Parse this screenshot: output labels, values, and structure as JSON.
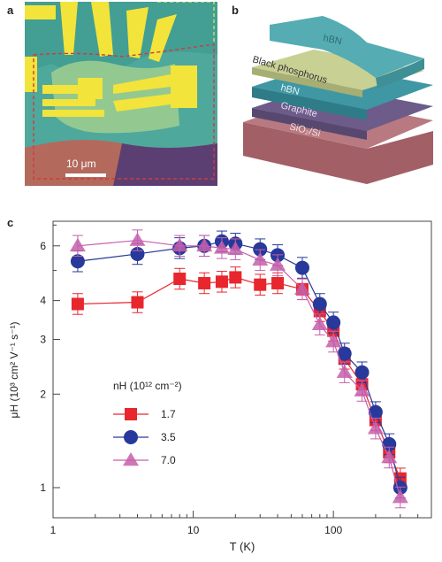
{
  "panel_labels": {
    "a": "a",
    "b": "b",
    "c": "c"
  },
  "micrograph": {
    "scale_bar": "10 μm"
  },
  "stack": {
    "layers": [
      "hBN",
      "Black phosphorus",
      "hBN",
      "Graphite",
      "SiO₂/Si"
    ],
    "colors": [
      "#4fa7ad",
      "#c7cf8e",
      "#3e93a0",
      "#6a5a86",
      "#b27078"
    ]
  },
  "chart_data": {
    "type": "scatter",
    "xlabel": "T (K)",
    "ylabel": "μH (10³ cm² V⁻¹ s⁻¹)",
    "xscale": "log",
    "yscale": "log",
    "xlim": [
      1,
      500
    ],
    "ylim": [
      0.8,
      7.2
    ],
    "x_ticks": [
      1,
      10,
      100
    ],
    "x_tick_labels": [
      "1",
      "10",
      "100"
    ],
    "y_ticks": [
      1,
      2,
      3,
      4,
      6
    ],
    "y_tick_labels": [
      "1",
      "2",
      "3",
      "4",
      "6"
    ],
    "legend_title": "nH (10¹² cm⁻²)",
    "legend_position": "lower-left",
    "series": [
      {
        "name": "1.7",
        "marker": "square",
        "color": "#e8262d",
        "x": [
          1.5,
          4,
          8,
          12,
          16,
          20,
          30,
          40,
          60,
          80,
          100,
          120,
          160,
          200,
          250,
          300
        ],
        "y": [
          3.9,
          3.95,
          4.7,
          4.55,
          4.6,
          4.75,
          4.5,
          4.55,
          4.35,
          3.7,
          3.2,
          2.6,
          2.15,
          1.65,
          1.3,
          1.07
        ]
      },
      {
        "name": "3.5",
        "marker": "circle",
        "color": "#27399a",
        "x": [
          1.5,
          4,
          8,
          12,
          16,
          20,
          30,
          40,
          60,
          80,
          100,
          120,
          160,
          200,
          250,
          300
        ],
        "y": [
          5.35,
          5.65,
          5.9,
          6.0,
          6.2,
          6.1,
          5.85,
          5.6,
          5.1,
          3.9,
          3.4,
          2.7,
          2.35,
          1.75,
          1.38,
          1.0
        ]
      },
      {
        "name": "7.0",
        "marker": "triangle",
        "color": "#c55fac",
        "x": [
          1.5,
          4,
          8,
          12,
          16,
          20,
          30,
          40,
          60,
          80,
          100,
          120,
          160,
          200,
          250,
          300
        ],
        "y": [
          6.0,
          6.25,
          6.0,
          6.0,
          5.9,
          5.85,
          5.4,
          5.2,
          4.35,
          3.35,
          2.95,
          2.35,
          2.05,
          1.55,
          1.25,
          0.93
        ]
      }
    ]
  }
}
